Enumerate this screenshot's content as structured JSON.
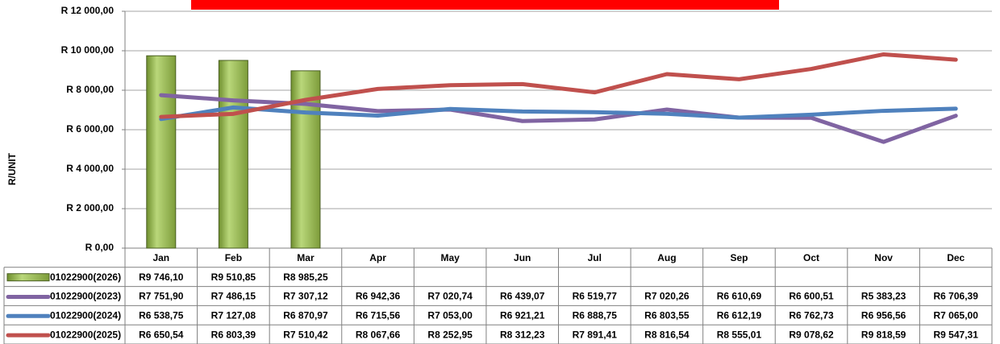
{
  "chart_data": {
    "type": "combo",
    "y_label": "R/UNIT",
    "categories": [
      "Jan",
      "Feb",
      "Mar",
      "Apr",
      "May",
      "Jun",
      "Jul",
      "Aug",
      "Sep",
      "Oct",
      "Nov",
      "Dec"
    ],
    "ylim": [
      0,
      12000
    ],
    "yticks": [
      {
        "value": 0,
        "label": "R 0,00"
      },
      {
        "value": 2000,
        "label": "R 2 000,00"
      },
      {
        "value": 4000,
        "label": "R 4 000,00"
      },
      {
        "value": 6000,
        "label": "R 6 000,00"
      },
      {
        "value": 8000,
        "label": "R 8 000,00"
      },
      {
        "value": 10000,
        "label": "R 10 000,00"
      },
      {
        "value": 12000,
        "label": "R 12 000,00"
      }
    ],
    "grid": true,
    "series": [
      {
        "name": "01022900(2026)",
        "type": "bar",
        "color": "#9bbb59",
        "values": [
          9746.1,
          9510.85,
          8985.25,
          null,
          null,
          null,
          null,
          null,
          null,
          null,
          null,
          null
        ],
        "value_labels": [
          "R9 746,10",
          "R9 510,85",
          "R8 985,25",
          null,
          null,
          null,
          null,
          null,
          null,
          null,
          null,
          null
        ]
      },
      {
        "name": "01022900(2023)",
        "type": "line",
        "color": "#8064a2",
        "values": [
          7751.9,
          7486.15,
          7307.12,
          6942.36,
          7020.74,
          6439.07,
          6519.77,
          7020.26,
          6610.69,
          6600.51,
          5383.23,
          6706.39
        ],
        "value_labels": [
          "R7 751,90",
          "R7 486,15",
          "R7 307,12",
          "R6 942,36",
          "R7 020,74",
          "R6 439,07",
          "R6 519,77",
          "R7 020,26",
          "R6 610,69",
          "R6 600,51",
          "R5 383,23",
          "R6 706,39"
        ]
      },
      {
        "name": "01022900(2024)",
        "type": "line",
        "color": "#4f81bd",
        "values": [
          6538.75,
          7127.08,
          6870.97,
          6715.56,
          7053.0,
          6921.21,
          6888.75,
          6803.55,
          6612.19,
          6762.73,
          6956.56,
          7065.0
        ],
        "value_labels": [
          "R6 538,75",
          "R7 127,08",
          "R6 870,97",
          "R6 715,56",
          "R7 053,00",
          "R6 921,21",
          "R6 888,75",
          "R6 803,55",
          "R6 612,19",
          "R6 762,73",
          "R6 956,56",
          "R7 065,00"
        ]
      },
      {
        "name": "01022900(2025)",
        "type": "line",
        "color": "#c0504d",
        "values": [
          6650.54,
          6803.39,
          7510.42,
          8067.66,
          8252.95,
          8312.23,
          7891.41,
          8816.54,
          8555.01,
          9078.62,
          9818.59,
          9547.31
        ],
        "value_labels": [
          "R6 650,54",
          "R6 803,39",
          "R7 510,42",
          "R8 067,66",
          "R8 252,95",
          "R8 312,23",
          "R7 891,41",
          "R8 816,54",
          "R8 555,01",
          "R9 078,62",
          "R9 818,59",
          "R9 547,31"
        ]
      }
    ]
  }
}
